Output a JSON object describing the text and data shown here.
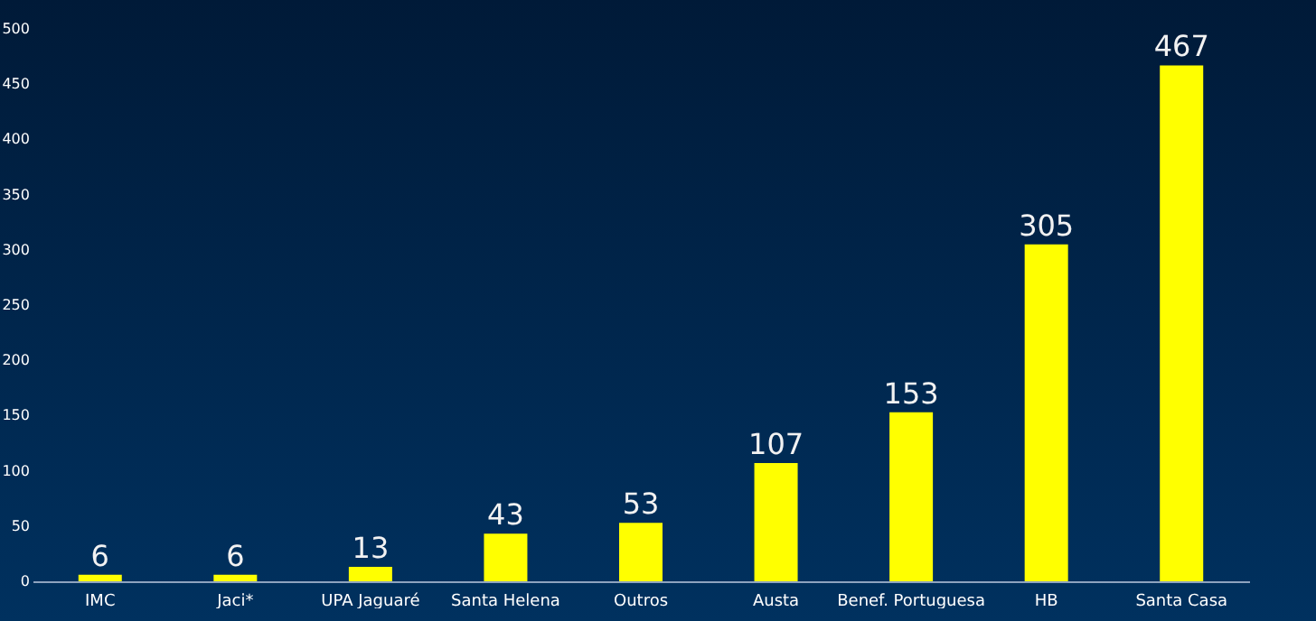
{
  "chart_data": {
    "type": "bar",
    "categories": [
      "IMC",
      "Jaci*",
      "UPA Jaguaré",
      "Santa Helena",
      "Outros",
      "Austa",
      "Benef. Portuguesa",
      "HB",
      "Santa Casa"
    ],
    "values": [
      6,
      6,
      13,
      43,
      53,
      107,
      153,
      305,
      467
    ],
    "color": "#ffff00",
    "ylim": [
      0,
      500
    ],
    "yticks": [
      0,
      50,
      100,
      150,
      200,
      250,
      300,
      350,
      400,
      450,
      500
    ],
    "data_labels": true,
    "grid": false
  }
}
